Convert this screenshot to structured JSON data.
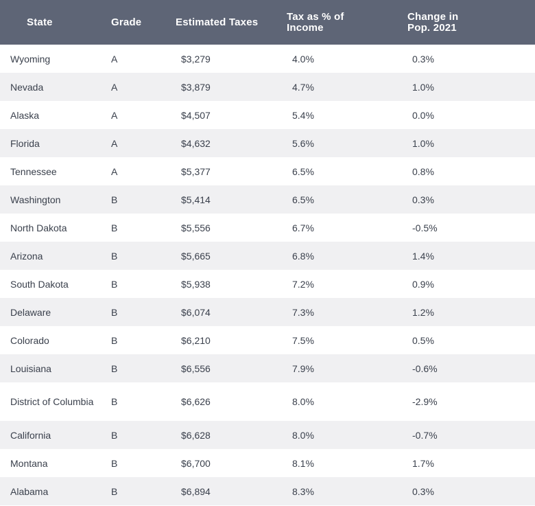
{
  "table": {
    "headers": {
      "state": "State",
      "grade": "Grade",
      "estimated_taxes": "Estimated Taxes",
      "tax_pct_income": "Tax as % of Income",
      "change_in_pop": "Change in Pop. 2021"
    },
    "rows": [
      {
        "state": "Wyoming",
        "grade": "A",
        "estimated_taxes": "$3,279",
        "tax_pct_income": "4.0%",
        "change_in_pop": "0.3%"
      },
      {
        "state": "Nevada",
        "grade": "A",
        "estimated_taxes": "$3,879",
        "tax_pct_income": "4.7%",
        "change_in_pop": "1.0%"
      },
      {
        "state": "Alaska",
        "grade": "A",
        "estimated_taxes": "$4,507",
        "tax_pct_income": "5.4%",
        "change_in_pop": "0.0%"
      },
      {
        "state": "Florida",
        "grade": "A",
        "estimated_taxes": "$4,632",
        "tax_pct_income": "5.6%",
        "change_in_pop": "1.0%"
      },
      {
        "state": "Tennessee",
        "grade": "A",
        "estimated_taxes": "$5,377",
        "tax_pct_income": "6.5%",
        "change_in_pop": "0.8%"
      },
      {
        "state": "Washington",
        "grade": "B",
        "estimated_taxes": "$5,414",
        "tax_pct_income": "6.5%",
        "change_in_pop": "0.3%"
      },
      {
        "state": "North Dakota",
        "grade": "B",
        "estimated_taxes": "$5,556",
        "tax_pct_income": "6.7%",
        "change_in_pop": "-0.5%"
      },
      {
        "state": "Arizona",
        "grade": "B",
        "estimated_taxes": "$5,665",
        "tax_pct_income": "6.8%",
        "change_in_pop": "1.4%"
      },
      {
        "state": "South Dakota",
        "grade": "B",
        "estimated_taxes": "$5,938",
        "tax_pct_income": "7.2%",
        "change_in_pop": "0.9%"
      },
      {
        "state": "Delaware",
        "grade": "B",
        "estimated_taxes": "$6,074",
        "tax_pct_income": "7.3%",
        "change_in_pop": "1.2%"
      },
      {
        "state": "Colorado",
        "grade": "B",
        "estimated_taxes": "$6,210",
        "tax_pct_income": "7.5%",
        "change_in_pop": "0.5%"
      },
      {
        "state": "Louisiana",
        "grade": "B",
        "estimated_taxes": "$6,556",
        "tax_pct_income": "7.9%",
        "change_in_pop": "-0.6%"
      },
      {
        "state": "District of Columbia",
        "grade": "B",
        "estimated_taxes": "$6,626",
        "tax_pct_income": "8.0%",
        "change_in_pop": "-2.9%"
      },
      {
        "state": "California",
        "grade": "B",
        "estimated_taxes": "$6,628",
        "tax_pct_income": "8.0%",
        "change_in_pop": "-0.7%"
      },
      {
        "state": "Montana",
        "grade": "B",
        "estimated_taxes": "$6,700",
        "tax_pct_income": "8.1%",
        "change_in_pop": "1.7%"
      },
      {
        "state": "Alabama",
        "grade": "B",
        "estimated_taxes": "$6,894",
        "tax_pct_income": "8.3%",
        "change_in_pop": "0.3%"
      }
    ]
  },
  "colors": {
    "header_background": "#5e6576",
    "header_text": "#ffffff",
    "row_alt_background": "#f0f0f2",
    "row_background": "#ffffff",
    "body_text": "#3a404c"
  }
}
